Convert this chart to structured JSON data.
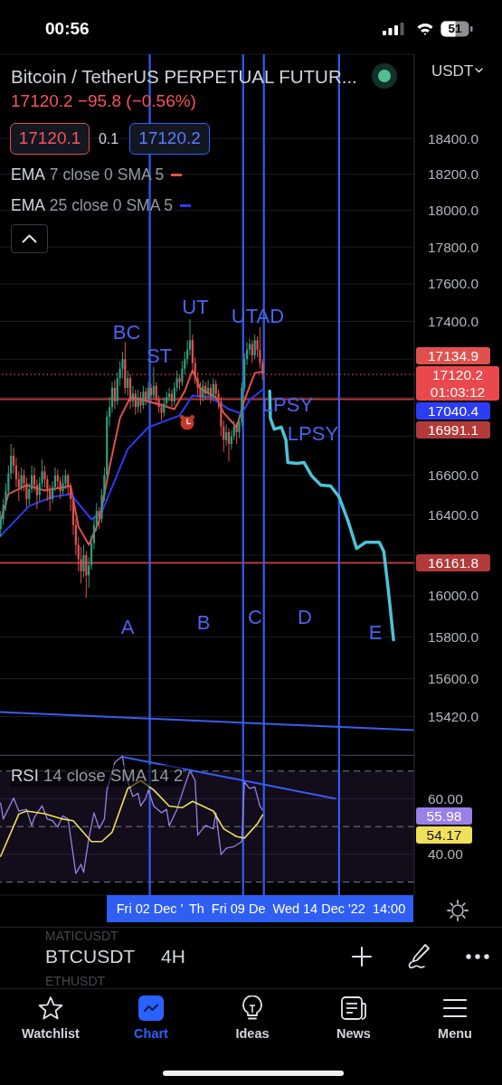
{
  "chart_data": [
    {
      "type": "candlestick",
      "title": "Bitcoin / TetherUS PERPETUAL FUTUR...",
      "subtitle": "17120.2 −95.8 (−0.56%)",
      "ylabel": "USDT",
      "x": [
        "2022-11-22T20:00",
        "2022-11-23T00:00",
        "2022-11-23T04:00",
        "2022-11-23T08:00",
        "2022-11-23T12:00",
        "2022-11-23T16:00",
        "2022-11-23T20:00",
        "2022-11-24T00:00",
        "2022-11-24T04:00",
        "2022-11-24T08:00",
        "2022-11-24T12:00",
        "2022-11-24T16:00",
        "2022-11-24T20:00",
        "2022-11-25T00:00",
        "2022-11-25T04:00",
        "2022-11-25T08:00",
        "2022-11-25T12:00",
        "2022-11-25T16:00",
        "2022-11-25T20:00",
        "2022-11-26T00:00",
        "2022-11-26T04:00",
        "2022-11-26T08:00",
        "2022-11-26T12:00",
        "2022-11-26T16:00",
        "2022-11-26T20:00",
        "2022-11-27T00:00",
        "2022-11-27T04:00",
        "2022-11-27T08:00",
        "2022-11-27T12:00",
        "2022-11-27T16:00",
        "2022-11-27T20:00",
        "2022-11-28T00:00",
        "2022-11-28T04:00",
        "2022-11-28T08:00",
        "2022-11-28T12:00",
        "2022-11-28T16:00",
        "2022-11-28T20:00",
        "2022-11-29T00:00",
        "2022-11-29T04:00",
        "2022-11-29T08:00",
        "2022-11-29T12:00",
        "2022-11-29T16:00",
        "2022-11-29T20:00",
        "2022-11-30T00:00",
        "2022-11-30T04:00",
        "2022-11-30T08:00",
        "2022-11-30T12:00",
        "2022-11-30T16:00",
        "2022-11-30T20:00",
        "2022-12-01T00:00",
        "2022-12-01T04:00",
        "2022-12-01T08:00",
        "2022-12-01T12:00",
        "2022-12-01T16:00",
        "2022-12-01T20:00",
        "2022-12-02T00:00",
        "2022-12-02T04:00",
        "2022-12-02T08:00",
        "2022-12-02T12:00",
        "2022-12-02T16:00",
        "2022-12-02T20:00",
        "2022-12-03T00:00",
        "2022-12-03T04:00",
        "2022-12-03T08:00",
        "2022-12-03T12:00",
        "2022-12-03T16:00",
        "2022-12-03T20:00",
        "2022-12-04T00:00",
        "2022-12-04T04:00",
        "2022-12-04T08:00",
        "2022-12-04T12:00",
        "2022-12-04T16:00",
        "2022-12-04T20:00",
        "2022-12-05T00:00",
        "2022-12-05T04:00",
        "2022-12-05T08:00",
        "2022-12-05T12:00",
        "2022-12-05T16:00",
        "2022-12-05T20:00",
        "2022-12-06T00:00",
        "2022-12-06T04:00",
        "2022-12-06T08:00",
        "2022-12-06T12:00",
        "2022-12-06T16:00",
        "2022-12-06T20:00",
        "2022-12-07T00:00",
        "2022-12-07T04:00",
        "2022-12-07T08:00",
        "2022-12-07T12:00",
        "2022-12-07T16:00",
        "2022-12-07T20:00",
        "2022-12-08T00:00",
        "2022-12-08T04:00",
        "2022-12-08T08:00",
        "2022-12-08T12:00",
        "2022-12-08T16:00",
        "2022-12-08T20:00",
        "2022-12-09T00:00",
        "2022-12-09T04:00",
        "2022-12-09T08:00",
        "2022-12-09T12:00",
        "2022-12-09T16:00"
      ],
      "ohlc": [
        [
          16330,
          16420,
          16290,
          16380
        ],
        [
          16380,
          16480,
          16350,
          16450
        ],
        [
          16450,
          16560,
          16420,
          16520
        ],
        [
          16520,
          16650,
          16500,
          16610
        ],
        [
          16610,
          16760,
          16580,
          16700
        ],
        [
          16700,
          16740,
          16610,
          16650
        ],
        [
          16650,
          16690,
          16540,
          16580
        ],
        [
          16580,
          16620,
          16470,
          16540
        ],
        [
          16540,
          16640,
          16520,
          16600
        ],
        [
          16600,
          16630,
          16520,
          16560
        ],
        [
          16560,
          16590,
          16440,
          16480
        ],
        [
          16480,
          16560,
          16450,
          16530
        ],
        [
          16530,
          16650,
          16510,
          16600
        ],
        [
          16600,
          16640,
          16520,
          16550
        ],
        [
          16550,
          16580,
          16430,
          16500
        ],
        [
          16500,
          16590,
          16470,
          16560
        ],
        [
          16560,
          16680,
          16540,
          16620
        ],
        [
          16620,
          16650,
          16540,
          16580
        ],
        [
          16580,
          16600,
          16470,
          16520
        ],
        [
          16520,
          16550,
          16420,
          16480
        ],
        [
          16480,
          16570,
          16460,
          16540
        ],
        [
          16540,
          16640,
          16520,
          16600
        ],
        [
          16600,
          16630,
          16530,
          16570
        ],
        [
          16570,
          16590,
          16480,
          16520
        ],
        [
          16520,
          16600,
          16500,
          16560
        ],
        [
          16560,
          16630,
          16530,
          16600
        ],
        [
          16600,
          16610,
          16500,
          16540
        ],
        [
          16540,
          16560,
          16420,
          16480
        ],
        [
          16480,
          16500,
          16300,
          16350
        ],
        [
          16350,
          16380,
          16200,
          16250
        ],
        [
          16250,
          16290,
          16120,
          16180
        ],
        [
          16180,
          16240,
          16060,
          16120
        ],
        [
          16120,
          16250,
          16090,
          16200
        ],
        [
          16200,
          16220,
          15990,
          16100
        ],
        [
          16100,
          16190,
          16040,
          16150
        ],
        [
          16150,
          16300,
          16130,
          16260
        ],
        [
          16260,
          16390,
          16230,
          16350
        ],
        [
          16350,
          16460,
          16320,
          16420
        ],
        [
          16420,
          16440,
          16330,
          16380
        ],
        [
          16380,
          16530,
          16360,
          16500
        ],
        [
          16500,
          16640,
          16470,
          16600
        ],
        [
          16600,
          16930,
          16580,
          16900
        ],
        [
          16900,
          17000,
          16850,
          16950
        ],
        [
          16950,
          17080,
          16920,
          17050
        ],
        [
          17050,
          17090,
          16940,
          16980
        ],
        [
          16980,
          17130,
          16960,
          17100
        ],
        [
          17100,
          17190,
          17060,
          17150
        ],
        [
          17150,
          17240,
          17100,
          17200
        ],
        [
          17200,
          17290,
          17020,
          17050
        ],
        [
          17050,
          17140,
          17010,
          17100
        ],
        [
          17100,
          17120,
          16940,
          16980
        ],
        [
          16980,
          17060,
          16950,
          17020
        ],
        [
          17020,
          17040,
          16910,
          16950
        ],
        [
          16950,
          17040,
          16920,
          17000
        ],
        [
          17000,
          17030,
          16920,
          16960
        ],
        [
          16960,
          17060,
          16940,
          17030
        ],
        [
          17030,
          17050,
          16960,
          16990
        ],
        [
          16990,
          17080,
          16970,
          17050
        ],
        [
          17050,
          17070,
          16980,
          17010
        ],
        [
          17010,
          17160,
          16990,
          17060
        ],
        [
          17060,
          17080,
          16960,
          16990
        ],
        [
          16990,
          17010,
          16920,
          16950
        ],
        [
          16950,
          16970,
          16880,
          16920
        ],
        [
          16920,
          17000,
          16900,
          16970
        ],
        [
          16970,
          17030,
          16950,
          17000
        ],
        [
          17000,
          17050,
          16980,
          17020
        ],
        [
          17020,
          17040,
          16950,
          16980
        ],
        [
          16980,
          17080,
          16960,
          17050
        ],
        [
          17050,
          17140,
          17030,
          17100
        ],
        [
          17100,
          17120,
          17040,
          17080
        ],
        [
          17080,
          17190,
          17060,
          17150
        ],
        [
          17150,
          17240,
          17120,
          17200
        ],
        [
          17200,
          17300,
          17170,
          17250
        ],
        [
          17250,
          17410,
          17220,
          17300
        ],
        [
          17300,
          17330,
          17140,
          17180
        ],
        [
          17180,
          17210,
          17070,
          17100
        ],
        [
          17100,
          17130,
          17010,
          17050
        ],
        [
          17050,
          17080,
          16960,
          17000
        ],
        [
          17000,
          17090,
          16980,
          17060
        ],
        [
          17060,
          17080,
          16990,
          17020
        ],
        [
          17020,
          17090,
          17000,
          17050
        ],
        [
          17050,
          17070,
          16970,
          17000
        ],
        [
          17000,
          17100,
          16980,
          17070
        ],
        [
          17070,
          17090,
          16990,
          17020
        ],
        [
          17020,
          17040,
          16940,
          16980
        ],
        [
          16980,
          17000,
          16800,
          16850
        ],
        [
          16850,
          16880,
          16720,
          16780
        ],
        [
          16780,
          16860,
          16750,
          16820
        ],
        [
          16820,
          16840,
          16670,
          16760
        ],
        [
          16760,
          16830,
          16730,
          16800
        ],
        [
          16800,
          16880,
          16780,
          16850
        ],
        [
          16850,
          16870,
          16760,
          16820
        ],
        [
          16820,
          16900,
          16790,
          16870
        ],
        [
          16870,
          17080,
          16850,
          17050
        ],
        [
          17050,
          17230,
          17030,
          17200
        ],
        [
          17200,
          17290,
          17170,
          17250
        ],
        [
          17250,
          17310,
          17220,
          17280
        ],
        [
          17280,
          17300,
          17180,
          17220
        ],
        [
          17220,
          17330,
          17200,
          17300
        ],
        [
          17300,
          17320,
          17210,
          17250
        ],
        [
          17250,
          17370,
          17150,
          17180
        ],
        [
          17180,
          17200,
          17090,
          17120.2
        ]
      ],
      "colors": [
        "#2e9e7e",
        "#2e9e7e",
        "#2e9e7e",
        "#2e9e7e",
        "#2e9e7e",
        "#e0514e",
        "#e0514e",
        "#e0514e",
        "#2e9e7e",
        "#e0514e",
        "#e0514e",
        "#2e9e7e",
        "#2e9e7e",
        "#e0514e",
        "#e0514e",
        "#2e9e7e",
        "#2e9e7e",
        "#e0514e",
        "#e0514e",
        "#e0514e",
        "#2e9e7e",
        "#2e9e7e",
        "#e0514e",
        "#e0514e",
        "#2e9e7e",
        "#2e9e7e",
        "#e0514e",
        "#e0514e",
        "#e0514e",
        "#e0514e",
        "#e0514e",
        "#e0514e",
        "#2e9e7e",
        "#e0514e",
        "#2e9e7e",
        "#2e9e7e",
        "#2e9e7e",
        "#2e9e7e",
        "#e0514e",
        "#2e9e7e",
        "#2e9e7e",
        "#2e9e7e",
        "#2e9e7e",
        "#2e9e7e",
        "#e0514e",
        "#2e9e7e",
        "#2e9e7e",
        "#2e9e7e",
        "#e0514e",
        "#2e9e7e",
        "#e0514e",
        "#2e9e7e",
        "#e0514e",
        "#2e9e7e",
        "#e0514e",
        "#2e9e7e",
        "#e0514e",
        "#2e9e7e",
        "#e0514e",
        "#2e9e7e",
        "#e0514e",
        "#e0514e",
        "#e0514e",
        "#2e9e7e",
        "#2e9e7e",
        "#2e9e7e",
        "#e0514e",
        "#2e9e7e",
        "#2e9e7e",
        "#e0514e",
        "#2e9e7e",
        "#2e9e7e",
        "#2e9e7e",
        "#2e9e7e",
        "#e0514e",
        "#e0514e",
        "#e0514e",
        "#e0514e",
        "#2e9e7e",
        "#e0514e",
        "#2e9e7e",
        "#e0514e",
        "#2e9e7e",
        "#e0514e",
        "#e0514e",
        "#e0514e",
        "#e0514e",
        "#2e9e7e",
        "#e0514e",
        "#2e9e7e",
        "#2e9e7e",
        "#e0514e",
        "#2e9e7e",
        "#2e9e7e",
        "#2e9e7e",
        "#2e9e7e",
        "#2e9e7e",
        "#e0514e",
        "#2e9e7e",
        "#e0514e",
        "#e0514e",
        "#e0514e"
      ],
      "series": [
        {
          "type": "line",
          "name": "EMA 7 close 0 SMA 5",
          "color": "#e0514e",
          "x": [
            "2022-11-22T20:00",
            "2022-11-23T08:00",
            "2022-11-24T12:00",
            "2022-11-25T16:00",
            "2022-11-27T08:00",
            "2022-11-27T20:00",
            "2022-11-28T12:00",
            "2022-11-29T04:00",
            "2022-11-29T20:00",
            "2022-11-30T12:00",
            "2022-12-01T04:00",
            "2022-12-02T00:00",
            "2022-12-02T20:00",
            "2022-12-04T00:00",
            "2022-12-04T16:00",
            "2022-12-05T04:00",
            "2022-12-05T16:00",
            "2022-12-06T16:00",
            "2022-12-07T04:00",
            "2022-12-08T00:00",
            "2022-12-08T12:00",
            "2022-12-09T04:00",
            "2022-12-09T16:00"
          ],
          "values": [
            16369,
            16505,
            16550,
            16523,
            16546,
            16342,
            16251,
            16369,
            16642,
            16892,
            17000,
            16986,
            16967,
            16939,
            17033,
            17141,
            17047,
            17000,
            16920,
            16846,
            16986,
            17127,
            17135
          ]
        },
        {
          "type": "line",
          "name": "EMA 25 close 0 SMA 5",
          "color": "#2b3cf2",
          "x": [
            "2022-11-22T20:00",
            "2022-11-24T16:00",
            "2022-11-26T04:00",
            "2022-11-27T08:00",
            "2022-11-28T16:00",
            "2022-11-29T08:00",
            "2022-12-01T00:00",
            "2022-12-02T08:00",
            "2022-12-04T08:00",
            "2022-12-05T04:00",
            "2022-12-06T08:00",
            "2022-12-07T12:00",
            "2022-12-08T08:00",
            "2022-12-08T20:00",
            "2022-12-09T16:00"
          ],
          "values": [
            16296,
            16445,
            16491,
            16505,
            16378,
            16414,
            16734,
            16846,
            16906,
            17010,
            17000,
            16939,
            16916,
            16986,
            17040
          ]
        },
        {
          "type": "line",
          "color": "#4cc3d6",
          "x": [
            "2022-12-10T03:00",
            "2022-12-10T04:00",
            "2022-12-10T10:00",
            "2022-12-10T21:00",
            "2022-12-11T04:00",
            "2022-12-11T07:00",
            "2022-12-11T21:00",
            "2022-12-12T08:00",
            "2022-12-12T20:00",
            "2022-12-13T10:00",
            "2022-12-14T01:00",
            "2022-12-14T14:00",
            "2022-12-15T04:00",
            "2022-12-15T17:00",
            "2022-12-16T07:00",
            "2022-12-17T04:00",
            "2022-12-17T11:00",
            "2022-12-17T18:00",
            "2022-12-18T02:00"
          ],
          "values": [
            17033,
            16892,
            16836,
            16846,
            16780,
            16665,
            16661,
            16665,
            16596,
            16550,
            16546,
            16491,
            16369,
            16233,
            16264,
            16264,
            16219,
            16028,
            15786
          ]
        },
        {
          "type": "line",
          "color": "#3a5cf0",
          "x": [
            "2022-11-22T19:00",
            "2022-12-19T10:00"
          ],
          "values": [
            15441,
            15356
          ]
        }
      ],
      "xlim": [
        "2022-11-22T19:00",
        "2022-12-19T10:00"
      ],
      "ylim": [
        15240,
        18880
      ],
      "yticks": [
        {
          "value": 18400,
          "label": "18400.0"
        },
        {
          "value": 18200,
          "label": "18200.0"
        },
        {
          "value": 18000,
          "label": "18000.0"
        },
        {
          "value": 17800,
          "label": "17800.0"
        },
        {
          "value": 17600,
          "label": "17600.0"
        },
        {
          "value": 17400,
          "label": "17400.0"
        },
        {
          "value": 17200,
          "label": null
        },
        {
          "value": 17000,
          "label": null
        },
        {
          "value": 16800,
          "label": null
        },
        {
          "value": 16600,
          "label": "16600.0"
        },
        {
          "value": 16400,
          "label": "16400.0"
        },
        {
          "value": 16200,
          "label": null
        },
        {
          "value": 16000,
          "label": "16000.0"
        },
        {
          "value": 15800,
          "label": "15800.0"
        },
        {
          "value": 15600,
          "label": "15600.0"
        },
        {
          "value": 15420,
          "label": "15420.0"
        }
      ],
      "log": "y",
      "grid": "y",
      "legend": "top left",
      "tick_labels": "y",
      "ref_lines": [
        {
          "axis": "y",
          "value": 17120.2,
          "label": "17120.2\n01:03:12",
          "color": "#e9494c",
          "line_style": "dotted"
        },
        {
          "axis": "y",
          "value": 16991.1,
          "label": "16991.1",
          "color": "#b33a3a"
        },
        {
          "axis": "y",
          "value": 16161.8,
          "label": "16161.8",
          "color": "#b33a3a"
        },
        {
          "axis": "x",
          "value": "2022-12-02T10:00",
          "color": "#2f5ef2"
        },
        {
          "axis": "x",
          "value": "2022-12-08T10:00",
          "color": "#2f5ef2"
        },
        {
          "axis": "x",
          "value": "2022-12-09T18:00",
          "color": "#2f5ef2"
        },
        {
          "axis": "x",
          "value": "2022-12-14T14:00",
          "color": "#2f5ef2"
        }
      ],
      "annotations": [
        "00:56",
        "51",
        "17120.1",
        "0.1",
        "17120.2",
        "17134.9",
        "17040.4",
        "BC",
        "ST",
        "UT",
        "UTAD",
        "LPSY",
        "LPSY",
        "A",
        "B",
        "C",
        "D",
        "E"
      ]
    },
    {
      "type": "line",
      "title": "RSI 14 close SMA 14 2",
      "series": [
        {
          "color": "#9a80e6",
          "x": [
            "2022-11-22T20:00",
            "2022-11-23T00:00",
            "2022-11-23T16:00",
            "2022-11-24T00:00",
            "2022-11-24T12:00",
            "2022-11-24T20:00",
            "2022-11-25T00:00",
            "2022-11-25T12:00",
            "2022-11-25T20:00",
            "2022-11-26T04:00",
            "2022-11-26T12:00",
            "2022-11-26T20:00",
            "2022-11-27T04:00",
            "2022-11-27T16:00",
            "2022-11-28T00:00",
            "2022-11-28T04:00",
            "2022-11-28T12:00",
            "2022-11-28T20:00",
            "2022-11-29T04:00",
            "2022-11-29T12:00",
            "2022-11-29T16:00",
            "2022-11-30T04:00",
            "2022-11-30T16:00",
            "2022-11-30T20:00",
            "2022-12-01T08:00",
            "2022-12-01T16:00",
            "2022-12-01T20:00",
            "2022-12-02T04:00",
            "2022-12-02T08:00",
            "2022-12-02T16:00",
            "2022-12-03T04:00",
            "2022-12-03T12:00",
            "2022-12-03T16:00",
            "2022-12-04T04:00",
            "2022-12-04T12:00",
            "2022-12-05T00:00",
            "2022-12-05T08:00",
            "2022-12-05T12:00",
            "2022-12-06T00:00",
            "2022-12-06T12:00",
            "2022-12-06T16:00",
            "2022-12-07T00:00",
            "2022-12-07T08:00",
            "2022-12-07T20:00",
            "2022-12-08T08:00",
            "2022-12-08T12:00",
            "2022-12-08T20:00",
            "2022-12-09T04:00",
            "2022-12-09T12:00",
            "2022-12-09T16:00"
          ],
          "values": [
            58.5,
            52.7,
            60.3,
            55.6,
            56.2,
            50.3,
            53.3,
            57.5,
            52.7,
            52.1,
            49.8,
            53.9,
            52.7,
            33.1,
            36.4,
            33.5,
            45.8,
            55.0,
            49.3,
            52.7,
            63.2,
            73.1,
            75.4,
            69.0,
            60.8,
            62.0,
            57.4,
            60.3,
            63.2,
            57.4,
            55.0,
            56.2,
            50.3,
            56.2,
            62.0,
            70.2,
            66.6,
            46.9,
            50.4,
            49.2,
            55.0,
            39.9,
            42.2,
            42.8,
            44.6,
            66.1,
            63.7,
            64.3,
            57.4,
            56.0
          ]
        },
        {
          "color": "#f1e05a",
          "x": [
            "2022-11-22T20:00",
            "2022-11-24T00:00",
            "2022-11-24T12:00",
            "2022-11-25T16:00",
            "2022-11-26T20:00",
            "2022-11-27T12:00",
            "2022-11-28T16:00",
            "2022-11-29T08:00",
            "2022-11-30T00:00",
            "2022-12-01T00:00",
            "2022-12-01T20:00",
            "2022-12-02T16:00",
            "2022-12-03T16:00",
            "2022-12-04T12:00",
            "2022-12-05T04:00",
            "2022-12-06T12:00",
            "2022-12-07T04:00",
            "2022-12-08T00:00",
            "2022-12-08T12:00",
            "2022-12-09T08:00",
            "2022-12-09T16:00"
          ],
          "values": [
            39.3,
            54.5,
            55.6,
            54.6,
            52.7,
            52.1,
            44.6,
            44.6,
            48.0,
            63.7,
            66.6,
            63.2,
            57.4,
            56.8,
            59.1,
            55.6,
            49.2,
            46.4,
            45.8,
            51.0,
            54.2
          ]
        },
        {
          "color": "#3a5cf0",
          "x": [
            "2022-11-30T17:00",
            "2022-12-14T08:00"
          ],
          "values": [
            75.1,
            60.1
          ]
        }
      ],
      "xlim": [
        "2022-11-22T19:00",
        "2022-12-19T10:00"
      ],
      "ylim": [
        25.3,
        75.8
      ],
      "xticks": [
        {
          "value": "2022-12-02T10:00",
          "label": "Fri 02 Dec '"
        },
        {
          "value": "2022-12-14T14:00",
          "label": "Wed 14 Dec '22  14:00"
        }
      ],
      "yticks": [
        {
          "value": 60,
          "label": "60.00"
        },
        {
          "value": 40,
          "label": "40.00"
        }
      ],
      "grid": "y",
      "bands": [
        {
          "axis": "y",
          "from": 30,
          "to": 70,
          "color": "#7e57c2"
        }
      ],
      "ref_lines": [
        {
          "axis": "y",
          "value": 70,
          "color": "#787b86",
          "line_style": "dashed"
        },
        {
          "axis": "y",
          "value": 50,
          "color": "#787b86",
          "line_style": "dashed"
        },
        {
          "axis": "y",
          "value": 30,
          "color": "#787b86",
          "line_style": "dashed"
        },
        {
          "axis": "x",
          "value": "2022-12-02T10:00",
          "color": "#2f5ef2"
        },
        {
          "axis": "x",
          "value": "2022-12-08T10:00",
          "color": "#2f5ef2"
        },
        {
          "axis": "x",
          "value": "2022-12-09T18:00",
          "color": "#2f5ef2"
        },
        {
          "axis": "x",
          "value": "2022-12-14T14:00",
          "color": "#2f5ef2"
        }
      ],
      "annotations": [
        "55.98",
        "54.17",
        "Th",
        "Fri 09 De",
        "MATICUSDT",
        "BTCUSDT",
        "4H",
        "ETHUSDT",
        "Watchlist",
        "Chart",
        "Ideas",
        "News",
        "Menu"
      ]
    }
  ]
}
